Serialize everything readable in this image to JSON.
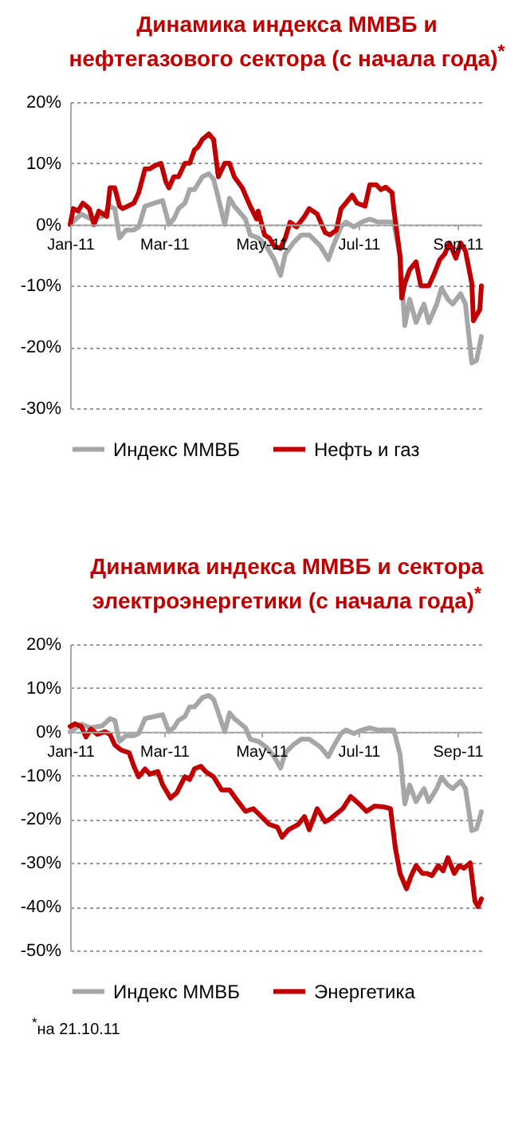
{
  "chart_data": [
    {
      "type": "line",
      "title": "Динамика индекса ММВБ и нефтегазового сектора (с начала года)$^{*}$",
      "xlim": [
        "2011-01-01",
        "2011-09-16"
      ],
      "xticks": [
        {
          "value": "2011-01-01",
          "label": "Jan-11"
        },
        {
          "value": "2011-03-01",
          "label": "Mar-11"
        },
        {
          "value": "2011-05-01",
          "label": "May-11"
        },
        {
          "value": "2011-07-01",
          "label": "Jul-11"
        },
        {
          "value": "2011-09-01",
          "label": "Sep-11"
        }
      ],
      "ylim": [
        -30,
        20
      ],
      "yticks": [
        {
          "value": -30,
          "label": "-30%"
        },
        {
          "value": -20,
          "label": "-20%"
        },
        {
          "value": -10,
          "label": "-10%"
        },
        {
          "value": 0,
          "label": "0%"
        },
        {
          "value": 10,
          "label": "10%"
        },
        {
          "value": 20,
          "label": "20%"
        }
      ],
      "grid": "y",
      "legend": "bottom",
      "series": [
        {
          "name": "Индекс ММВБ",
          "color": "#a6a6a6",
          "x": [
            "2011-01-01",
            "2011-01-08",
            "2011-01-14",
            "2011-01-21",
            "2011-01-26",
            "2011-01-29",
            "2011-02-01",
            "2011-02-05",
            "2011-02-10",
            "2011-02-13",
            "2011-02-17",
            "2011-02-23",
            "2011-02-28",
            "2011-03-04",
            "2011-03-07",
            "2011-03-10",
            "2011-03-14",
            "2011-03-17",
            "2011-03-20",
            "2011-03-25",
            "2011-03-29",
            "2011-04-01",
            "2011-04-04",
            "2011-04-08",
            "2011-04-11",
            "2011-04-14",
            "2011-04-21",
            "2011-04-24",
            "2011-04-29",
            "2011-05-04",
            "2011-05-09",
            "2011-05-13",
            "2011-05-16",
            "2011-05-21",
            "2011-05-26",
            "2011-05-31",
            "2011-06-07",
            "2011-06-12",
            "2011-06-15",
            "2011-06-20",
            "2011-06-23",
            "2011-06-28",
            "2011-07-03",
            "2011-07-08",
            "2011-07-13",
            "2011-07-20",
            "2011-07-23",
            "2011-07-27",
            "2011-07-30",
            "2011-08-02",
            "2011-08-06",
            "2011-08-11",
            "2011-08-14",
            "2011-08-19",
            "2011-08-22",
            "2011-08-26",
            "2011-08-29",
            "2011-09-03",
            "2011-09-06",
            "2011-09-10",
            "2011-09-13",
            "2011-09-16"
          ],
          "values": [
            0,
            1.7,
            0.9,
            1.3,
            3,
            2.6,
            -2.2,
            -0.9,
            -0.9,
            -0.4,
            3,
            3.5,
            3.9,
            0,
            0.9,
            2.6,
            3.5,
            5.7,
            5.7,
            7.8,
            8.3,
            7.4,
            4.3,
            0,
            4.3,
            3,
            0.9,
            -1.7,
            -2.2,
            -3.5,
            -5.7,
            -8.3,
            -4.8,
            -3,
            -1.7,
            -1.7,
            -3.5,
            -5.7,
            -3.5,
            -0.4,
            0.4,
            -0.4,
            0.4,
            0.9,
            0.4,
            0.4,
            0.4,
            -5.2,
            -16.5,
            -12.2,
            -16,
            -13,
            -16,
            -13,
            -10.4,
            -12.2,
            -13,
            -11.3,
            -13,
            -22.6,
            -22.2,
            -18.3
          ]
        },
        {
          "name": "Нефть и газ",
          "color": "#c00000",
          "x": [
            "2011-01-01",
            "2011-01-03",
            "2011-01-06",
            "2011-01-09",
            "2011-01-13",
            "2011-01-16",
            "2011-01-19",
            "2011-01-24",
            "2011-01-26",
            "2011-01-29",
            "2011-02-01",
            "2011-02-03",
            "2011-02-10",
            "2011-02-13",
            "2011-02-17",
            "2011-02-20",
            "2011-02-23",
            "2011-02-27",
            "2011-03-02",
            "2011-03-04",
            "2011-03-07",
            "2011-03-10",
            "2011-03-14",
            "2011-03-17",
            "2011-03-20",
            "2011-03-22",
            "2011-03-25",
            "2011-03-29",
            "2011-04-01",
            "2011-04-04",
            "2011-04-08",
            "2011-04-11",
            "2011-04-14",
            "2011-04-19",
            "2011-04-24",
            "2011-04-28",
            "2011-04-29",
            "2011-05-03",
            "2011-05-06",
            "2011-05-09",
            "2011-05-13",
            "2011-05-16",
            "2011-05-19",
            "2011-05-23",
            "2011-05-28",
            "2011-05-31",
            "2011-06-05",
            "2011-06-10",
            "2011-06-13",
            "2011-06-17",
            "2011-06-20",
            "2011-06-23",
            "2011-06-27",
            "2011-06-30",
            "2011-07-05",
            "2011-07-08",
            "2011-07-12",
            "2011-07-15",
            "2011-07-18",
            "2011-07-22",
            "2011-07-23",
            "2011-07-27",
            "2011-07-28",
            "2011-07-30",
            "2011-08-02",
            "2011-08-06",
            "2011-08-09",
            "2011-08-14",
            "2011-08-17",
            "2011-08-21",
            "2011-08-24",
            "2011-08-27",
            "2011-08-31",
            "2011-09-03",
            "2011-09-06",
            "2011-09-10",
            "2011-09-11",
            "2011-09-15",
            "2011-09-16"
          ],
          "values": [
            0,
            2.6,
            2.2,
            3.5,
            2.6,
            0,
            2.2,
            1.3,
            6,
            6,
            3,
            2.6,
            3.5,
            5.2,
            9.1,
            9.1,
            9.6,
            10,
            7,
            6,
            7.8,
            7.8,
            10,
            10,
            12.2,
            12.6,
            13.9,
            14.8,
            13.9,
            7.8,
            10,
            10,
            7.8,
            6,
            3,
            0.9,
            2.2,
            -1.7,
            -2.2,
            -3.5,
            -3.9,
            -2.2,
            0.4,
            -0.4,
            1.3,
            2.6,
            1.7,
            -1.3,
            -1.7,
            -0.9,
            2.6,
            3.5,
            4.8,
            3.5,
            3,
            6.5,
            6.5,
            5.7,
            6.1,
            5.2,
            2.6,
            -5.2,
            -12,
            -9.6,
            -7.4,
            -6.1,
            -10,
            -10,
            -8.3,
            -5.7,
            -4.8,
            -3,
            -5.5,
            -3,
            -4.3,
            -9.6,
            -15.7,
            -13.9,
            -10
          ]
        }
      ]
    },
    {
      "type": "line",
      "title": "Динамика индекса ММВБ и сектора электроэнергетики (с начала года)$^{*}$",
      "xlim": [
        "2011-01-01",
        "2011-09-16"
      ],
      "xticks": [
        {
          "value": "2011-01-01",
          "label": "Jan-11"
        },
        {
          "value": "2011-03-01",
          "label": "Mar-11"
        },
        {
          "value": "2011-05-01",
          "label": "May-11"
        },
        {
          "value": "2011-07-01",
          "label": "Jul-11"
        },
        {
          "value": "2011-09-01",
          "label": "Sep-11"
        }
      ],
      "ylim": [
        -50,
        20
      ],
      "yticks": [
        {
          "value": -50,
          "label": "-50%"
        },
        {
          "value": -40,
          "label": "-40%"
        },
        {
          "value": -30,
          "label": "-30%"
        },
        {
          "value": -20,
          "label": "-20%"
        },
        {
          "value": -10,
          "label": "-10%"
        },
        {
          "value": 0,
          "label": "0%"
        },
        {
          "value": 10,
          "label": "10%"
        },
        {
          "value": 20,
          "label": "20%"
        }
      ],
      "grid": "y",
      "legend": "bottom",
      "annotations": [
        "$^{*}$на 21.10.11"
      ],
      "series": [
        {
          "name": "Индекс ММВБ",
          "color": "#a6a6a6",
          "x": [
            "2011-01-01",
            "2011-01-08",
            "2011-01-14",
            "2011-01-21",
            "2011-01-26",
            "2011-01-29",
            "2011-02-01",
            "2011-02-05",
            "2011-02-10",
            "2011-02-13",
            "2011-02-17",
            "2011-02-23",
            "2011-02-28",
            "2011-03-04",
            "2011-03-07",
            "2011-03-10",
            "2011-03-14",
            "2011-03-17",
            "2011-03-20",
            "2011-03-25",
            "2011-03-29",
            "2011-04-01",
            "2011-04-04",
            "2011-04-08",
            "2011-04-11",
            "2011-04-14",
            "2011-04-21",
            "2011-04-24",
            "2011-04-29",
            "2011-05-04",
            "2011-05-09",
            "2011-05-13",
            "2011-05-16",
            "2011-05-21",
            "2011-05-26",
            "2011-05-31",
            "2011-06-07",
            "2011-06-12",
            "2011-06-15",
            "2011-06-20",
            "2011-06-23",
            "2011-06-28",
            "2011-07-03",
            "2011-07-08",
            "2011-07-13",
            "2011-07-20",
            "2011-07-23",
            "2011-07-27",
            "2011-07-30",
            "2011-08-02",
            "2011-08-06",
            "2011-08-11",
            "2011-08-14",
            "2011-08-19",
            "2011-08-22",
            "2011-08-26",
            "2011-08-29",
            "2011-09-03",
            "2011-09-06",
            "2011-09-10",
            "2011-09-13",
            "2011-09-16"
          ],
          "values": [
            0,
            1.7,
            0.9,
            1.3,
            3,
            2.6,
            -2.2,
            -0.9,
            -0.9,
            -0.4,
            3,
            3.5,
            3.9,
            0,
            0.9,
            2.6,
            3.5,
            5.7,
            5.7,
            7.8,
            8.3,
            7.4,
            4.3,
            0,
            4.3,
            3,
            0.9,
            -1.7,
            -2.2,
            -3.5,
            -5.7,
            -8.3,
            -4.8,
            -3,
            -1.7,
            -1.7,
            -3.5,
            -5.7,
            -3.5,
            -0.4,
            0.4,
            -0.4,
            0.4,
            0.9,
            0.4,
            0.4,
            0.4,
            -5.2,
            -16.5,
            -12.2,
            -16,
            -13,
            -16,
            -13,
            -10.4,
            -12.2,
            -13,
            -11.3,
            -13,
            -22.6,
            -22.2,
            -18.3
          ]
        },
        {
          "name": "Энергетика",
          "color": "#c00000",
          "x": [
            "2011-01-01",
            "2011-01-04",
            "2011-01-08",
            "2011-01-11",
            "2011-01-14",
            "2011-01-18",
            "2011-01-23",
            "2011-01-26",
            "2011-01-29",
            "2011-02-02",
            "2011-02-07",
            "2011-02-10",
            "2011-02-13",
            "2011-02-17",
            "2011-02-20",
            "2011-02-25",
            "2011-02-28",
            "2011-03-05",
            "2011-03-09",
            "2011-03-14",
            "2011-03-17",
            "2011-03-20",
            "2011-03-24",
            "2011-03-27",
            "2011-04-01",
            "2011-04-06",
            "2011-04-11",
            "2011-04-16",
            "2011-04-21",
            "2011-04-26",
            "2011-05-01",
            "2011-05-06",
            "2011-05-11",
            "2011-05-14",
            "2011-05-18",
            "2011-05-21",
            "2011-05-24",
            "2011-05-28",
            "2011-05-31",
            "2011-06-05",
            "2011-06-10",
            "2011-06-13",
            "2011-06-21",
            "2011-06-26",
            "2011-07-01",
            "2011-07-06",
            "2011-07-11",
            "2011-07-17",
            "2011-07-21",
            "2011-07-24",
            "2011-07-27",
            "2011-07-31",
            "2011-08-03",
            "2011-08-06",
            "2011-08-10",
            "2011-08-13",
            "2011-08-16",
            "2011-08-20",
            "2011-08-23",
            "2011-08-26",
            "2011-08-30",
            "2011-09-02",
            "2011-09-05",
            "2011-09-09",
            "2011-09-12",
            "2011-09-14",
            "2011-09-16"
          ],
          "values": [
            1.2,
            1.8,
            1.2,
            -1.2,
            0.6,
            -0.6,
            0,
            -0.6,
            -3,
            -4.2,
            -4.8,
            -7.9,
            -10.3,
            -8.5,
            -9.7,
            -9.1,
            -12.1,
            -15.2,
            -13.9,
            -10.3,
            -10.9,
            -8.5,
            -7.9,
            -9.1,
            -10.3,
            -13.3,
            -13.3,
            -15.8,
            -18.2,
            -17.6,
            -19.4,
            -21.2,
            -21.8,
            -24.1,
            -22.4,
            -21.8,
            -21.2,
            -19.4,
            -22.4,
            -17.6,
            -20.6,
            -20,
            -17.6,
            -14.8,
            -16.4,
            -18.2,
            -17,
            -17.2,
            -17.6,
            -26.5,
            -32.4,
            -35.9,
            -32.9,
            -30.6,
            -32.4,
            -32.4,
            -32.9,
            -30.6,
            -31.8,
            -28.8,
            -32.4,
            -30.6,
            -31.2,
            -30,
            -38.8,
            -40,
            -38.2
          ]
        }
      ]
    }
  ]
}
